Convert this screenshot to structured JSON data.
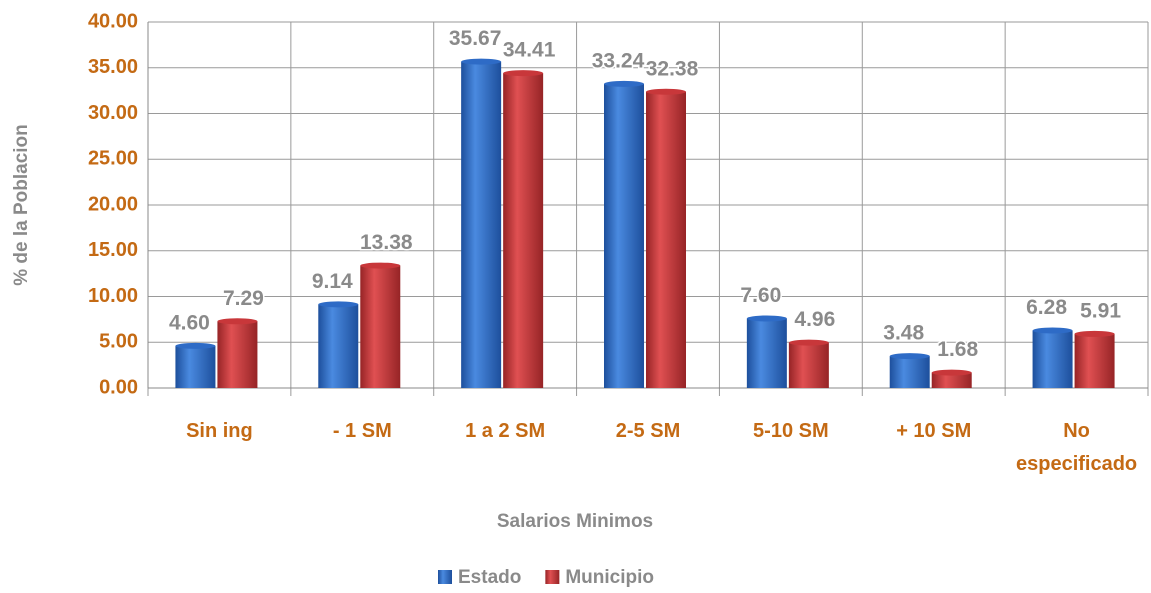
{
  "chart_data": {
    "type": "bar",
    "categories": [
      "Sin ing",
      "- 1 SM",
      "1 a 2 SM",
      "2-5 SM",
      "5-10 SM",
      "+ 10 SM",
      "No especificado"
    ],
    "series": [
      {
        "name": "Estado",
        "color": "#2e6bc6",
        "values": [
          4.6,
          9.14,
          35.67,
          33.24,
          7.6,
          3.48,
          6.28
        ],
        "value_labels": [
          "4.60",
          "9.14",
          "35.67",
          "33.24",
          "7.60",
          "3.48",
          "6.28"
        ]
      },
      {
        "name": "Municipio",
        "color": "#c8373a",
        "values": [
          7.29,
          13.38,
          34.41,
          32.38,
          4.96,
          1.68,
          5.91
        ],
        "value_labels": [
          "7.29",
          "13.38",
          "34.41",
          "32.38",
          "4.96",
          "1.68",
          "5.91"
        ]
      }
    ],
    "x_label": "Salarios Minimos",
    "y_label": "% de la Poblacion",
    "ylim": [
      0,
      40
    ],
    "yticks": [
      {
        "value": 0,
        "label": "0.00"
      },
      {
        "value": 5,
        "label": "5.00"
      },
      {
        "value": 10,
        "label": "10.00"
      },
      {
        "value": 15,
        "label": "15.00"
      },
      {
        "value": 20,
        "label": "20.00"
      },
      {
        "value": 25,
        "label": "25.00"
      },
      {
        "value": 30,
        "label": "30.00"
      },
      {
        "value": 35,
        "label": "35.00"
      },
      {
        "value": 40,
        "label": "40.00"
      }
    ],
    "grid": true,
    "legend": "bottom"
  }
}
